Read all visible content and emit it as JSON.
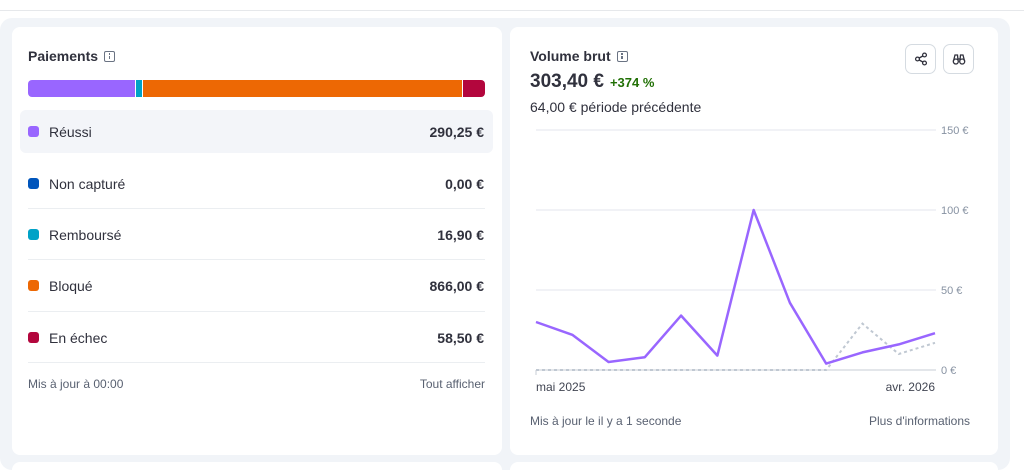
{
  "payments": {
    "title": "Paiements",
    "rows": [
      {
        "label": "Réussi",
        "value": "290,25 €",
        "color": "#9966ff"
      },
      {
        "label": "Non capturé",
        "value": "0,00 €",
        "color": "#0055bc"
      },
      {
        "label": "Remboursé",
        "value": "16,90 €",
        "color": "#00a2c7"
      },
      {
        "label": "Bloqué",
        "value": "866,00 €",
        "color": "#ed6804"
      },
      {
        "label": "En échec",
        "value": "58,50 €",
        "color": "#b3063d"
      }
    ],
    "bar_shares": [
      0.2353,
      0.0,
      0.0137,
      0.7021,
      0.0474
    ],
    "updated": "Mis à jour à 00:00",
    "view_all": "Tout afficher"
  },
  "volume": {
    "title": "Volume brut",
    "total": "303,40 €",
    "delta": "+374 %",
    "previous": "64,00 € période précédente",
    "share_icon": "share-icon",
    "explore_icon": "binoculars-icon",
    "updated": "Mis à jour le il y a 1 seconde",
    "more_info": "Plus d'informations",
    "colors": {
      "current": "#9966ff",
      "previous": "#c0c8d2",
      "positive": "#217005"
    }
  },
  "chart_data": {
    "type": "line",
    "x_start_label": "mai 2025",
    "x_end_label": "avr. 2026",
    "y_ticks": [
      "150 €",
      "100 €",
      "50 €",
      "0 €"
    ],
    "y_tick_values": [
      150,
      100,
      50,
      0
    ],
    "ylim": [
      0,
      150
    ],
    "grid": true,
    "series": [
      {
        "values": [
          30,
          22,
          5,
          8,
          34,
          9,
          100,
          42,
          4,
          11,
          16,
          23
        ]
      },
      {
        "values": [
          0,
          0,
          0,
          0,
          0,
          0,
          0,
          0,
          0,
          29,
          10,
          17
        ]
      }
    ]
  }
}
